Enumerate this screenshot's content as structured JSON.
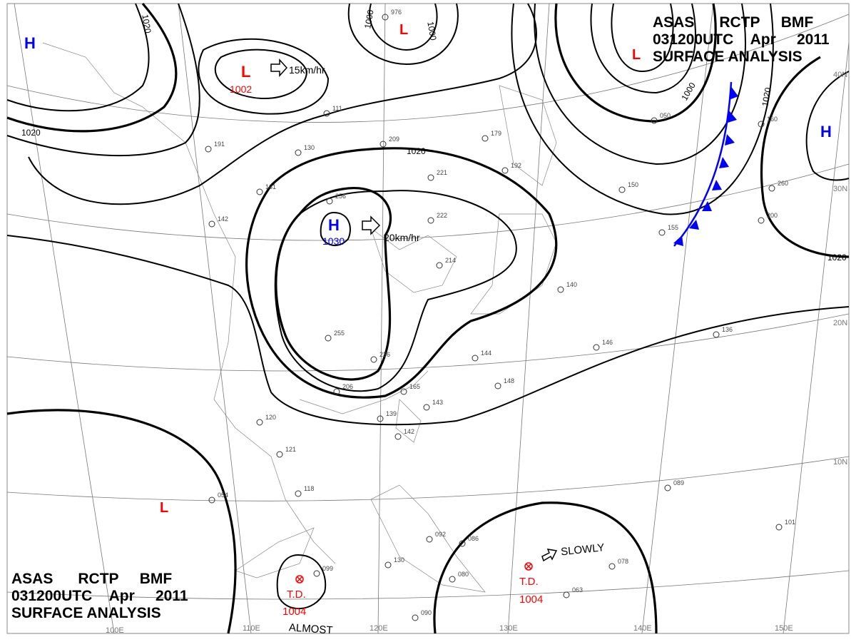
{
  "header": {
    "line1": [
      "ASAS",
      "RCTP",
      "BMF"
    ],
    "line2": [
      "031200UTC",
      "Apr",
      "2011"
    ],
    "line3": "SURFACE ANALYSIS"
  },
  "axes": {
    "longitude": [
      "100E",
      "110E",
      "120E",
      "130E",
      "140E",
      "150E"
    ],
    "latitude": [
      "40N",
      "30N",
      "20N",
      "10N"
    ]
  },
  "isobar_labels": [
    "1020",
    "1000",
    "1000",
    "1020",
    "1000",
    "1020",
    "1020"
  ],
  "centers": [
    {
      "type": "H",
      "value": "",
      "color": "#0000ff"
    },
    {
      "type": "L",
      "value": "1002",
      "color": "#ff0000"
    },
    {
      "type": "L",
      "value": "",
      "color": "#ff0000"
    },
    {
      "type": "H",
      "value": "1030",
      "color": "#0000ff"
    },
    {
      "type": "L",
      "value": "",
      "color": "#ff0000"
    },
    {
      "type": "H",
      "value": "",
      "color": "#0000ff"
    },
    {
      "type": "L",
      "value": "",
      "color": "#ff0000"
    }
  ],
  "tropical_depressions": [
    {
      "label": "T.D.",
      "value": "1004",
      "motion": "ALMOST"
    },
    {
      "label": "T.D.",
      "value": "1004",
      "motion": "SLOWLY"
    }
  ],
  "motion_arrows": [
    "15km/hr",
    "20km/hr"
  ],
  "front": {
    "type": "cold",
    "color": "#0000ff"
  },
  "stations": [
    "976",
    "256",
    "221",
    "222",
    "209",
    "214",
    "179",
    "192",
    "255",
    "206",
    "236",
    "165",
    "139",
    "142",
    "143",
    "144",
    "148",
    "146",
    "136",
    "140",
    "120",
    "121",
    "118",
    "054",
    "089",
    "101",
    "092",
    "086",
    "099",
    "130",
    "080",
    "090",
    "063",
    "078",
    "161",
    "191",
    "142",
    "130",
    "111",
    "160",
    "050",
    "150",
    "155",
    "260",
    "200"
  ],
  "colors": {
    "high": "#0000ff",
    "low": "#ff0000",
    "isobar": "#000000",
    "grid": "#777777"
  }
}
